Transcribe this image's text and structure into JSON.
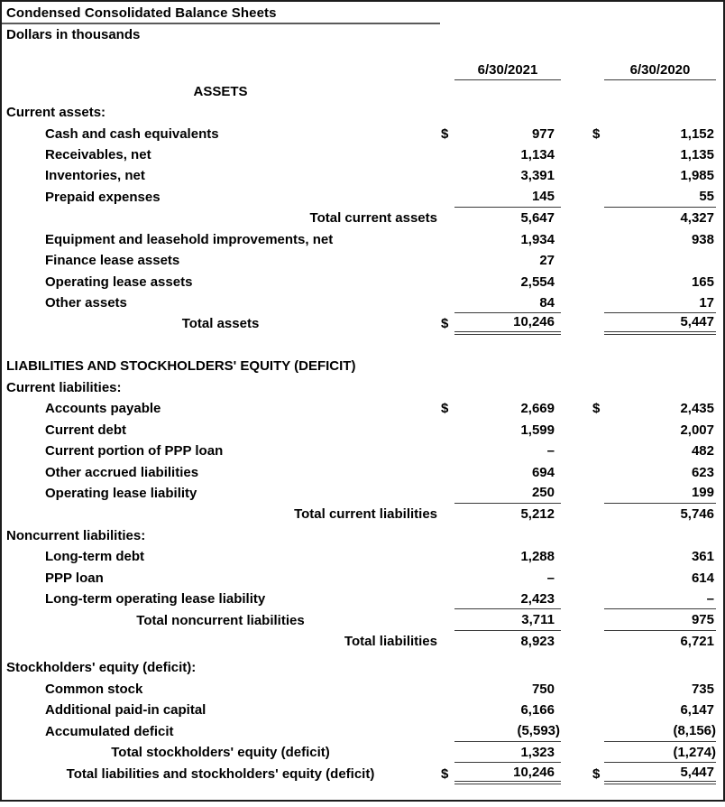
{
  "title": "Condensed Consolidated Balance Sheets",
  "subtitle": "Dollars in thousands",
  "columns": {
    "col1": "6/30/2021",
    "col2": "6/30/2020"
  },
  "colors": {
    "text": "#000000",
    "rule": "#3a3a3a",
    "title_rule": "#5a5a5a",
    "page_border": "#1c1c1c",
    "background": "#ffffff"
  },
  "rows": [
    {
      "type": "colhead"
    },
    {
      "type": "row",
      "label": "ASSETS",
      "align": "center"
    },
    {
      "type": "row",
      "label": "Current assets:",
      "align": "left"
    },
    {
      "type": "row",
      "label": "Cash and cash equivalents",
      "indent": 1,
      "d1": "$",
      "v1": "977",
      "d2": "$",
      "v2": "1,152"
    },
    {
      "type": "row",
      "label": "Receivables, net",
      "indent": 1,
      "v1": "1,134",
      "v2": "1,135"
    },
    {
      "type": "row",
      "label": "Inventories, net",
      "indent": 1,
      "v1": "3,391",
      "v2": "1,985"
    },
    {
      "type": "row",
      "label": "Prepaid expenses",
      "indent": 1,
      "v1": "145",
      "v2": "55",
      "ul": "single"
    },
    {
      "type": "row",
      "label": "Total current assets",
      "align": "right",
      "v1": "5,647",
      "v2": "4,327"
    },
    {
      "type": "row",
      "label": "Equipment and leasehold improvements, net",
      "indent": 1,
      "v1": "1,934",
      "v2": "938"
    },
    {
      "type": "row",
      "label": "Finance lease assets",
      "indent": 1,
      "v1": "27",
      "v2": ""
    },
    {
      "type": "row",
      "label": "Operating lease assets",
      "indent": 1,
      "v1": "2,554",
      "v2": "165"
    },
    {
      "type": "row",
      "label": "Other assets",
      "indent": 1,
      "v1": "84",
      "v2": "17",
      "ul": "single"
    },
    {
      "type": "row",
      "label": "Total assets",
      "align": "center",
      "d1": "$",
      "v1": "10,246",
      "v2": "5,447",
      "ul": "double"
    },
    {
      "type": "spacer",
      "h": 23.45
    },
    {
      "type": "row",
      "label": "LIABILITIES AND STOCKHOLDERS' EQUITY (DEFICIT)",
      "align": "left"
    },
    {
      "type": "row",
      "label": "Current liabilities:",
      "align": "left"
    },
    {
      "type": "row",
      "label": "Accounts payable",
      "indent": 1,
      "d1": "$",
      "v1": "2,669",
      "d2": "$",
      "v2": "2,435"
    },
    {
      "type": "row",
      "label": "Current debt",
      "indent": 1,
      "v1": "1,599",
      "v2": "2,007"
    },
    {
      "type": "row",
      "label": "Current portion of PPP loan",
      "indent": 1,
      "v1": "–",
      "v2": "482"
    },
    {
      "type": "row",
      "label": "Other accrued liabilities",
      "indent": 1,
      "v1": "694",
      "v2": "623"
    },
    {
      "type": "row",
      "label": "Operating lease liability",
      "indent": 1,
      "v1": "250",
      "v2": "199",
      "ul": "single"
    },
    {
      "type": "row",
      "label": "Total current liabilities",
      "align": "right",
      "v1": "5,212",
      "v2": "5,746"
    },
    {
      "type": "row",
      "label": "Noncurrent liabilities:",
      "align": "left"
    },
    {
      "type": "row",
      "label": "Long-term debt",
      "indent": 1,
      "v1": "1,288",
      "v2": "361"
    },
    {
      "type": "row",
      "label": "PPP loan",
      "indent": 1,
      "v1": "–",
      "v2": "614"
    },
    {
      "type": "row",
      "label": "Long-term operating lease liability",
      "indent": 1,
      "v1": "2,423",
      "v2": "–",
      "ul": "single"
    },
    {
      "type": "row",
      "label": "Total noncurrent liabilities",
      "align": "center",
      "v1": "3,711",
      "v2": "975",
      "ul": "single"
    },
    {
      "type": "row",
      "label": "Total liabilities",
      "align": "right",
      "v1": "8,923",
      "v2": "6,721"
    },
    {
      "type": "spacer",
      "h": 6
    },
    {
      "type": "row",
      "label": "Stockholders' equity (deficit):",
      "align": "left"
    },
    {
      "type": "row",
      "label": "Common stock",
      "indent": 1,
      "v1": "750",
      "v2": "735"
    },
    {
      "type": "row",
      "label": "Additional paid-in capital",
      "indent": 1,
      "v1": "6,166",
      "v2": "6,147"
    },
    {
      "type": "row",
      "label": "Accumulated deficit",
      "indent": 1,
      "v1": "(5,593)",
      "v2": "(8,156)",
      "ul": "single"
    },
    {
      "type": "row",
      "label": "Total stockholders' equity (deficit)",
      "align": "center",
      "v1": "1,323",
      "v2": "(1,274)",
      "ul": "single"
    },
    {
      "type": "row",
      "label": "Total liabilities and stockholders' equity (deficit)",
      "align": "center",
      "d1": "$",
      "v1": "10,246",
      "d2": "$",
      "v2": "5,447",
      "ul": "double"
    }
  ]
}
